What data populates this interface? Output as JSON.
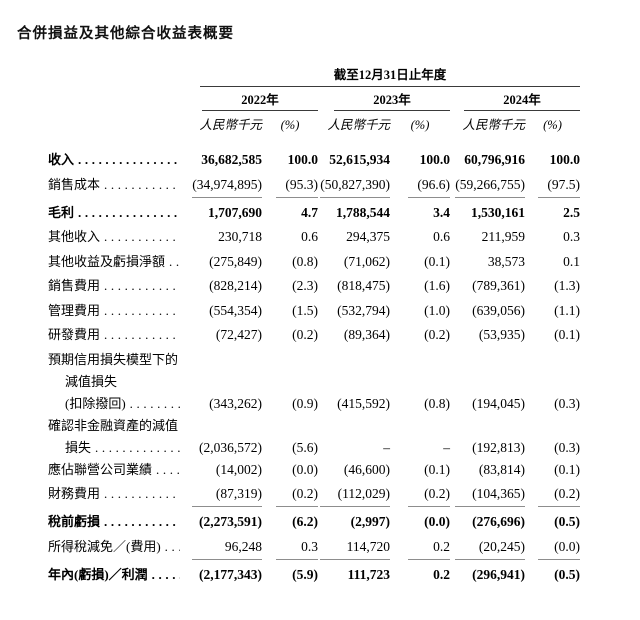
{
  "page": {
    "title": "合併損益及其他綜合收益表概要"
  },
  "table": {
    "period_header": "截至12月31日止年度",
    "col_groups": [
      {
        "year": "2022年",
        "unit": "人民幣千元",
        "pct": "(%)"
      },
      {
        "year": "2023年",
        "unit": "人民幣千元",
        "pct": "(%)"
      },
      {
        "year": "2024年",
        "unit": "人民幣千元",
        "pct": "(%)"
      }
    ],
    "rows": [
      {
        "label": "收入",
        "bold": true,
        "values": [
          "36,682,585",
          "100.0",
          "52,615,934",
          "100.0",
          "60,796,916",
          "100.0"
        ]
      },
      {
        "label": "銷售成本",
        "rule": true,
        "values": [
          "(34,974,895)",
          "(95.3)",
          "(50,827,390)",
          "(96.6)",
          "(59,266,755)",
          "(97.5)"
        ]
      },
      {
        "label": "毛利",
        "bold": true,
        "gap": true,
        "values": [
          "1,707,690",
          "4.7",
          "1,788,544",
          "3.4",
          "1,530,161",
          "2.5"
        ]
      },
      {
        "label": "其他收入",
        "values": [
          "230,718",
          "0.6",
          "294,375",
          "0.6",
          "211,959",
          "0.3"
        ]
      },
      {
        "label": "其他收益及虧損淨額",
        "values": [
          "(275,849)",
          "(0.8)",
          "(71,062)",
          "(0.1)",
          "38,573",
          "0.1"
        ]
      },
      {
        "label": "銷售費用",
        "values": [
          "(828,214)",
          "(2.3)",
          "(818,475)",
          "(1.6)",
          "(789,361)",
          "(1.3)"
        ]
      },
      {
        "label": "管理費用",
        "values": [
          "(554,354)",
          "(1.5)",
          "(532,794)",
          "(1.0)",
          "(639,056)",
          "(1.1)"
        ]
      },
      {
        "label": "研發費用",
        "values": [
          "(72,427)",
          "(0.2)",
          "(89,364)",
          "(0.2)",
          "(53,935)",
          "(0.1)"
        ]
      },
      {
        "label": "預期信用損失模型下的",
        "tight": true,
        "values": null
      },
      {
        "label": "減值損失",
        "indent": true,
        "tight": true,
        "values": null
      },
      {
        "label": "(扣除撥回)",
        "indent": true,
        "tight": true,
        "values": [
          "(343,262)",
          "(0.9)",
          "(415,592)",
          "(0.8)",
          "(194,045)",
          "(0.3)"
        ]
      },
      {
        "label": "確認非金融資產的減值",
        "tight": true,
        "values": null
      },
      {
        "label": "損失",
        "indent": true,
        "tight": true,
        "values": [
          "(2,036,572)",
          "(5.6)",
          "–",
          "–",
          "(192,813)",
          "(0.3)"
        ]
      },
      {
        "label": "應佔聯營公司業績",
        "values": [
          "(14,002)",
          "(0.0)",
          "(46,600)",
          "(0.1)",
          "(83,814)",
          "(0.1)"
        ]
      },
      {
        "label": "財務費用",
        "rule": true,
        "values": [
          "(87,319)",
          "(0.2)",
          "(112,029)",
          "(0.2)",
          "(104,365)",
          "(0.2)"
        ]
      },
      {
        "label": "稅前虧損",
        "bold": true,
        "gap": true,
        "values": [
          "(2,273,591)",
          "(6.2)",
          "(2,997)",
          "(0.0)",
          "(276,696)",
          "(0.5)"
        ]
      },
      {
        "label": "所得稅減免／(費用)",
        "rule": true,
        "values": [
          "96,248",
          "0.3",
          "114,720",
          "0.2",
          "(20,245)",
          "(0.0)"
        ]
      },
      {
        "label": "年內(虧損)／利潤",
        "bold": true,
        "gap": true,
        "values": [
          "(2,177,343)",
          "(5.9)",
          "111,723",
          "0.2",
          "(296,941)",
          "(0.5)"
        ]
      }
    ]
  }
}
